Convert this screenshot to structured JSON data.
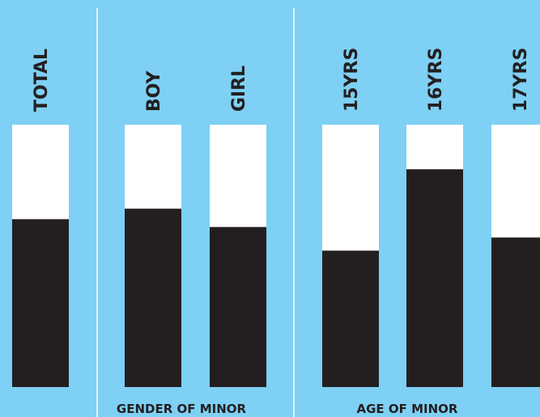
{
  "colors": {
    "background": "#7ed0f4",
    "bar_fill": "#231f20",
    "bar_track": "#ffffff",
    "divider": "#ffffff"
  },
  "chart_data": {
    "type": "bar",
    "orientation": "vertical",
    "stacked_percent": true,
    "ylim": [
      0,
      100
    ],
    "grid": false,
    "legend": "none",
    "groups": [
      {
        "label": "",
        "categories": [
          "TOTAL"
        ]
      },
      {
        "label": "GENDER OF MINOR",
        "categories": [
          "BOY",
          "GIRL"
        ]
      },
      {
        "label": "AGE OF MINOR",
        "categories": [
          "15YRS",
          "16YRS",
          "17YRS"
        ]
      }
    ],
    "categories": [
      "TOTAL",
      "BOY",
      "GIRL",
      "15YRS",
      "16YRS",
      "17YRS"
    ],
    "values": [
      64,
      68,
      61,
      52,
      83,
      57
    ]
  }
}
